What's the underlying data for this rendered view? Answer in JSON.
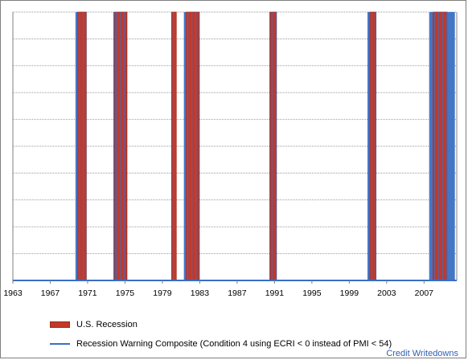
{
  "chart_data": {
    "type": "bar",
    "x_range": [
      1963,
      2010.5
    ],
    "y_range": [
      0,
      1
    ],
    "grid": true,
    "x_ticks": [
      "1963",
      "1967",
      "1971",
      "1975",
      "1979",
      "1983",
      "1987",
      "1991",
      "1995",
      "1999",
      "2003",
      "2007"
    ],
    "legend_placement": "bottom",
    "series": [
      {
        "name": "U.S. Recession",
        "color": "#c0392b",
        "periods": [
          [
            1969.95,
            1970.85
          ],
          [
            1973.9,
            1975.2
          ],
          [
            1980.0,
            1980.5
          ],
          [
            1981.55,
            1982.9
          ],
          [
            1990.55,
            1991.2
          ],
          [
            2001.2,
            2001.85
          ],
          [
            2007.95,
            2009.45
          ]
        ]
      },
      {
        "name": "Recession Warning Composite (Condition 4 using ECRI < 0 instead of PMI < 54)",
        "color": "#3a6fc4",
        "periods": [
          [
            1969.7,
            1970.9
          ],
          [
            1973.75,
            1975.25
          ],
          [
            1979.95,
            1980.45
          ],
          [
            1981.3,
            1983.0
          ],
          [
            1990.45,
            1991.25
          ],
          [
            2000.95,
            2001.9
          ],
          [
            2007.55,
            2010.3
          ]
        ]
      }
    ]
  },
  "legend": {
    "recession_label": "U.S. Recession",
    "composite_label": "Recession Warning Composite (Condition 4 using ECRI < 0 instead of PMI < 54)"
  },
  "credit": "Credit Writedowns"
}
